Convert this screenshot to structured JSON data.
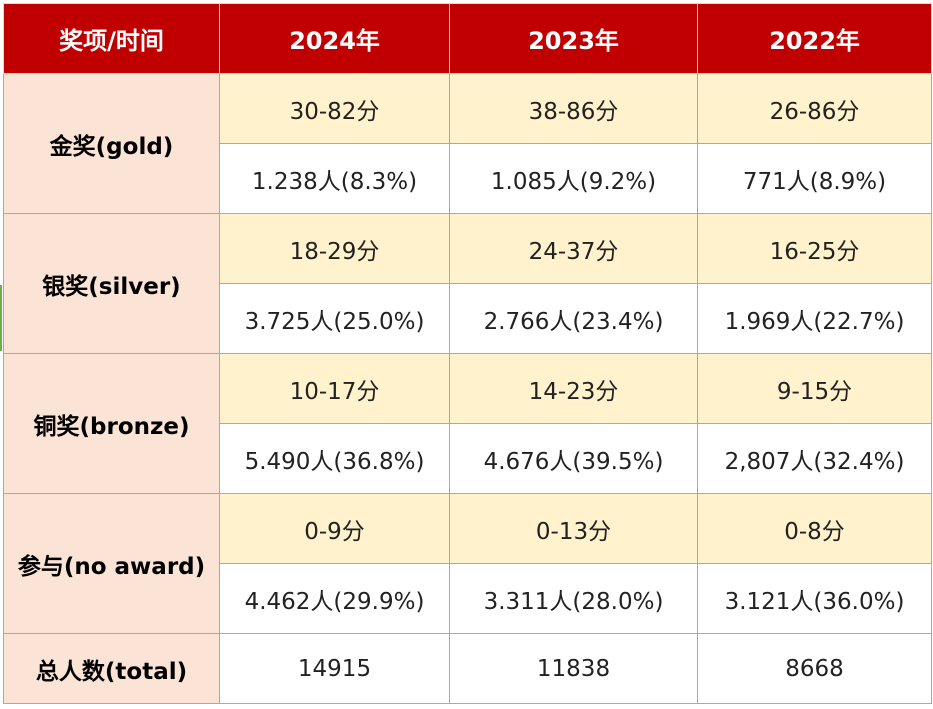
{
  "header": {
    "corner": "奖项/时间",
    "years": [
      "2024年",
      "2023年",
      "2022年"
    ]
  },
  "rows": [
    {
      "label": "金奖(gold)",
      "scores": [
        "30-82分",
        "38-86分",
        "26-86分"
      ],
      "counts": [
        "1.238人(8.3%)",
        "1.085人(9.2%)",
        "771人(8.9%)"
      ]
    },
    {
      "label": "银奖(silver)",
      "scores": [
        "18-29分",
        "24-37分",
        "16-25分"
      ],
      "counts": [
        "3.725人(25.0%)",
        "2.766人(23.4%)",
        "1.969人(22.7%)"
      ]
    },
    {
      "label": "铜奖(bronze)",
      "scores": [
        "10-17分",
        "14-23分",
        "9-15分"
      ],
      "counts": [
        "5.490人(36.8%)",
        "4.676人(39.5%)",
        "2,807人(32.4%)"
      ]
    },
    {
      "label": "参与(no award)",
      "scores": [
        "0-9分",
        "0-13分",
        "0-8分"
      ],
      "counts": [
        "4.462人(29.9%)",
        "3.311人(28.0%)",
        "3.121人(36.0%)"
      ]
    }
  ],
  "total": {
    "label": "总人数(total)",
    "values": [
      "14915",
      "11838",
      "8668"
    ]
  },
  "colors": {
    "header_bg": "#c00000",
    "label_bg": "#fbe4d5",
    "score_bg": "#fff2cc"
  }
}
